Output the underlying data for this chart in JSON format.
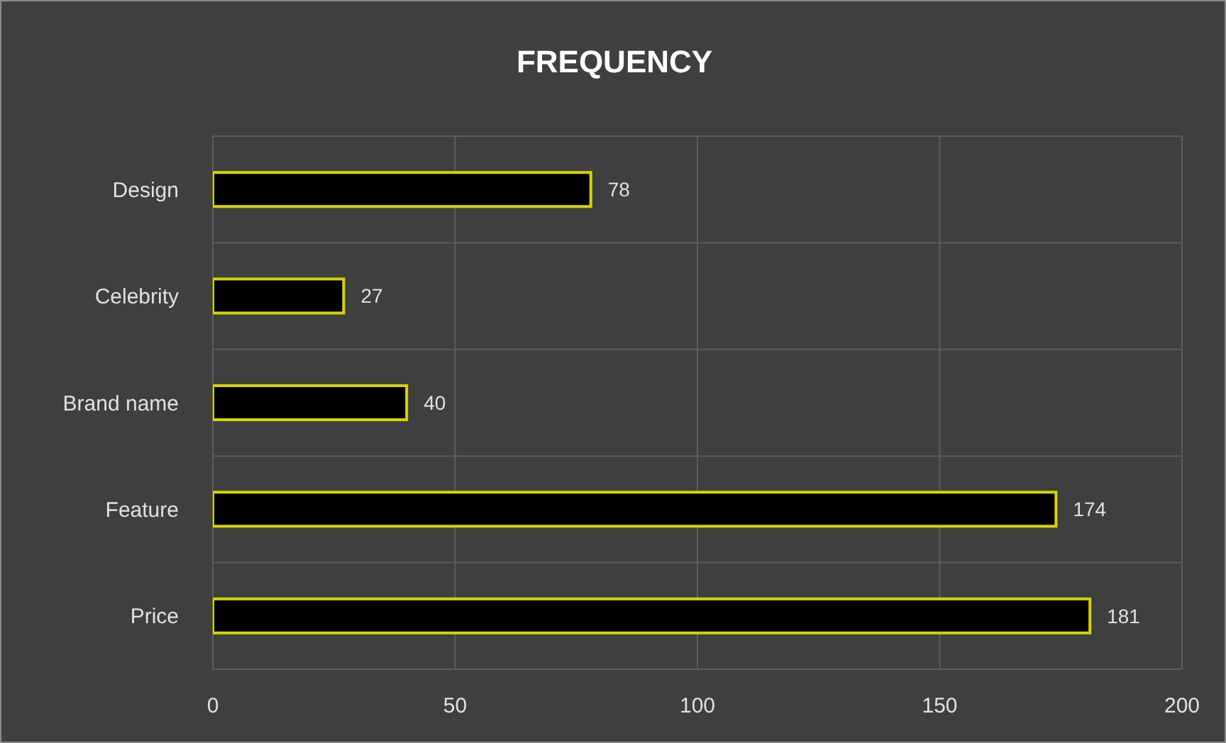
{
  "chart_data": {
    "type": "bar",
    "orientation": "horizontal",
    "title": "FREQUENCY",
    "categories": [
      "Design",
      "Celebrity",
      "Brand name",
      "Feature",
      "Price"
    ],
    "values": [
      78,
      27,
      40,
      174,
      181
    ],
    "color": "#000000",
    "xlim": [
      0,
      200
    ],
    "xticks": [
      0,
      50,
      100,
      150,
      200
    ],
    "grid": true,
    "data_labels": true
  }
}
